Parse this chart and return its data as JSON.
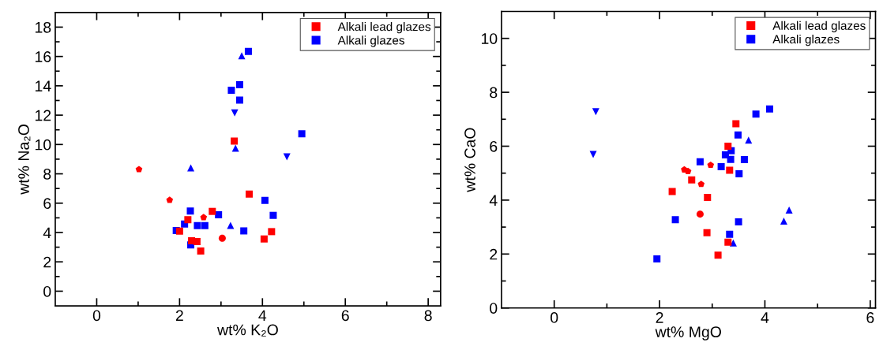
{
  "chart_data": [
    {
      "type": "scatter",
      "xlabel": "wt% K₂O",
      "ylabel": "wt% Na₂O",
      "xlim": [
        -1,
        8.3
      ],
      "ylim": [
        -1,
        19
      ],
      "xticks": [
        0,
        {
          "value": 1,
          "label": null
        },
        2,
        {
          "value": 3,
          "label": null
        },
        4,
        {
          "value": 5,
          "label": null
        },
        6,
        {
          "value": 7,
          "label": null
        },
        8
      ],
      "yticks": [
        0,
        {
          "value": 1,
          "label": null
        },
        2,
        {
          "value": 3,
          "label": null
        },
        4,
        {
          "value": 5,
          "label": null
        },
        6,
        {
          "value": 7,
          "label": null
        },
        8,
        {
          "value": 9,
          "label": null
        },
        10,
        {
          "value": 11,
          "label": null
        },
        12,
        {
          "value": 13,
          "label": null
        },
        14,
        {
          "value": 15,
          "label": null
        },
        16,
        {
          "value": 17,
          "label": null
        },
        18
      ],
      "grid": false,
      "legend": "top right",
      "series": [
        {
          "name": "Alkali lead glazes",
          "color": "#ff0000",
          "marker": "square",
          "x": [
            3.32,
            3.68,
            2.79,
            2.2,
            2.0,
            2.29,
            2.42,
            2.51,
            4.04,
            4.22
          ],
          "values": [
            10.23,
            6.62,
            5.44,
            4.87,
            4.1,
            3.43,
            3.38,
            2.74,
            3.56,
            4.06
          ]
        },
        {
          "name": "Alkali glazes",
          "color": "#0000ff",
          "marker": "square",
          "x": [
            3.66,
            3.45,
            3.25,
            3.45,
            4.95,
            4.06,
            2.26,
            2.94,
            4.26,
            2.12,
            2.43,
            2.61,
            1.92,
            3.55,
            2.27
          ],
          "values": [
            16.35,
            14.08,
            13.7,
            13.02,
            10.73,
            6.19,
            5.46,
            5.21,
            5.17,
            4.58,
            4.47,
            4.47,
            4.13,
            4.11,
            3.15
          ]
        },
        {
          "color": "#ff0000",
          "x": [
            1.02,
            1.76,
            2.58
          ],
          "values": [
            8.3,
            6.21,
            5.03
          ]
        },
        {
          "color": "#ff0000",
          "marker": "circle",
          "x": [
            3.03
          ],
          "values": [
            3.61
          ]
        },
        {
          "color": "#0000ff",
          "marker": "triangle",
          "x": [
            3.5,
            3.35,
            2.27,
            3.23
          ],
          "values": [
            16.05,
            9.75,
            8.41,
            4.49
          ]
        },
        {
          "color": "#0000ff",
          "marker": "triangle_down",
          "x": [
            3.33,
            4.59
          ],
          "values": [
            12.15,
            9.16
          ]
        }
      ]
    },
    {
      "type": "scatter",
      "xlabel": "wt% MgO",
      "ylabel": "wt% CaO",
      "xlim": [
        -1,
        6.1
      ],
      "ylim": [
        0,
        11
      ],
      "xticks": [
        0,
        {
          "value": 1,
          "label": null
        },
        2,
        {
          "value": 3,
          "label": null
        },
        4,
        {
          "value": 5,
          "label": null
        },
        6
      ],
      "yticks": [
        0,
        {
          "value": 1,
          "label": null
        },
        2,
        {
          "value": 3,
          "label": null
        },
        4,
        {
          "value": 5,
          "label": null
        },
        6,
        {
          "value": 7,
          "label": null
        },
        8,
        {
          "value": 9,
          "label": null
        },
        10
      ],
      "grid": false,
      "legend": "top right",
      "series": [
        {
          "name": "Alkali lead glazes",
          "color": "#ff0000",
          "marker": "square",
          "x": [
            3.45,
            3.3,
            3.33,
            2.61,
            2.24,
            2.91,
            2.9,
            3.3,
            3.11
          ],
          "values": [
            6.83,
            6.0,
            5.11,
            4.75,
            4.32,
            4.1,
            2.79,
            2.44,
            1.96
          ]
        },
        {
          "name": "Alkali glazes",
          "color": "#0000ff",
          "marker": "square",
          "x": [
            4.09,
            3.83,
            3.49,
            3.36,
            3.25,
            3.35,
            3.61,
            2.77,
            3.17,
            3.51,
            2.3,
            3.5,
            3.33,
            1.95
          ],
          "values": [
            7.38,
            7.19,
            6.42,
            5.83,
            5.68,
            5.51,
            5.5,
            5.42,
            5.24,
            4.98,
            3.27,
            3.19,
            2.73,
            1.82
          ]
        },
        {
          "color": "#ff0000",
          "x": [
            2.47,
            2.54,
            2.97,
            2.79
          ],
          "values": [
            5.13,
            5.07,
            5.3,
            4.59
          ]
        },
        {
          "color": "#ff0000",
          "marker": "circle",
          "x": [
            2.77
          ],
          "values": [
            3.48
          ]
        },
        {
          "color": "#0000ff",
          "marker": "triangle",
          "x": [
            3.69,
            4.46,
            4.36,
            3.4
          ],
          "values": [
            6.23,
            3.63,
            3.22,
            2.41
          ]
        },
        {
          "color": "#0000ff",
          "marker": "triangle_down",
          "x": [
            0.79,
            0.74
          ],
          "values": [
            7.28,
            5.69
          ]
        }
      ]
    }
  ]
}
